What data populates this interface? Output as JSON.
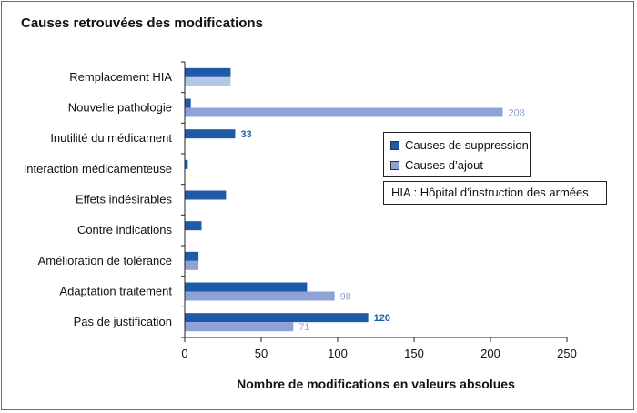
{
  "chart_data": {
    "type": "bar",
    "orientation": "horizontal",
    "title": "Causes retrouvées des modifications",
    "xlabel": "Nombre de modifications en valeurs absolues",
    "ylabel": "",
    "xlim": [
      0,
      250
    ],
    "xticks": [
      0,
      50,
      100,
      150,
      200,
      250
    ],
    "categories": [
      "Remplacement HIA",
      "Nouvelle pathologie",
      "Inutilité du médicament",
      "Interaction médicamenteuse",
      "Effets indésirables",
      "Contre indications",
      "Amélioration de tolérance",
      "Adaptation traitement",
      "Pas de justification"
    ],
    "series": [
      {
        "name": "Causes de suppression",
        "color": "#1f5aa6",
        "values": [
          30,
          4,
          33,
          2,
          27,
          11,
          9,
          80,
          120
        ]
      },
      {
        "name": "Causes d’ajout",
        "color": "#8fa2d8",
        "values": [
          30,
          208,
          0,
          0,
          0,
          0,
          9,
          98,
          71
        ]
      }
    ],
    "data_labels": [
      {
        "series": 0,
        "category": 2,
        "text": "33"
      },
      {
        "series": 1,
        "category": 1,
        "text": "208"
      },
      {
        "series": 1,
        "category": 7,
        "text": "98"
      },
      {
        "series": 0,
        "category": 8,
        "text": "120"
      },
      {
        "series": 1,
        "category": 8,
        "text": "71"
      }
    ],
    "legend_position": "right",
    "grid": false,
    "note": "HIA : Hôpital d’instruction des armées"
  },
  "colors": {
    "highlight": "#b4c6ea",
    "label_dark": "#1f5aa6",
    "label_light": "#8fa2d8"
  }
}
